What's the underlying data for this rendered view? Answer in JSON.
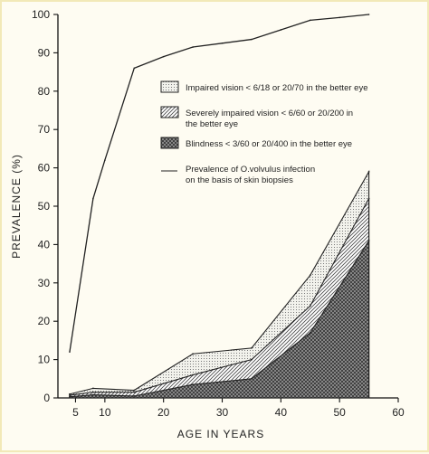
{
  "chart_data": {
    "type": "area",
    "xlabel": "AGE IN YEARS",
    "ylabel": "PREVALENCE (%)",
    "xlim": [
      2,
      60
    ],
    "ylim": [
      0,
      100
    ],
    "xticks": [
      5,
      10,
      20,
      30,
      40,
      50,
      60
    ],
    "yticks": [
      0,
      10,
      20,
      30,
      40,
      50,
      60,
      70,
      80,
      90,
      100
    ],
    "grid": false,
    "legend_position": "center",
    "series": [
      {
        "key": "impaired",
        "legend": [
          "Impaired vision < 6/18 or 20/70 in the better eye"
        ],
        "style": "stipple",
        "x": [
          4,
          8,
          15,
          25,
          35,
          45,
          55
        ],
        "y": [
          1,
          2.5,
          2,
          11.5,
          13,
          32,
          59
        ]
      },
      {
        "key": "severe",
        "legend": [
          "Severely impaired vision < 6/60 or 20/200 in",
          "the better eye"
        ],
        "style": "hatched",
        "x": [
          4,
          8,
          15,
          25,
          35,
          45,
          55
        ],
        "y": [
          0.7,
          1.5,
          1.5,
          6,
          10,
          24,
          52
        ]
      },
      {
        "key": "blind",
        "legend": [
          "Blindness < 3/60 or 20/400 in the better eye"
        ],
        "style": "crosshatch",
        "x": [
          4,
          8,
          15,
          25,
          35,
          45,
          55
        ],
        "y": [
          0.3,
          0.8,
          0.5,
          3.5,
          5,
          17,
          41
        ]
      },
      {
        "key": "infection",
        "legend": [
          "Prevalence of O.volvulus infection",
          "on the basis of skin biopsies"
        ],
        "style": "line",
        "x": [
          4,
          8,
          10,
          15,
          20,
          25,
          30,
          35,
          40,
          45,
          50,
          55
        ],
        "y": [
          12,
          52,
          62,
          86,
          89,
          91.5,
          92.5,
          93.5,
          96,
          98.5,
          99.2,
          100
        ]
      }
    ]
  }
}
